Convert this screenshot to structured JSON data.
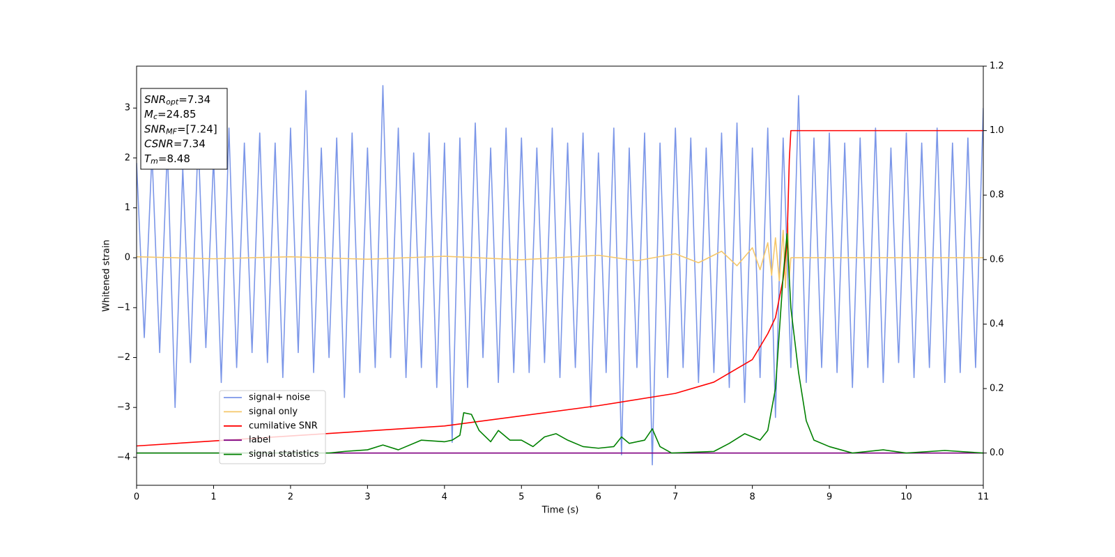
{
  "chart_data": {
    "type": "line",
    "xlabel": "Time (s)",
    "ylabel": "Whitened strain",
    "xlim": [
      0,
      11
    ],
    "ylim": [
      -4.56,
      3.84
    ],
    "y2lim": [
      -0.1,
      1.2
    ],
    "xticks": [
      0,
      1,
      2,
      3,
      4,
      5,
      6,
      7,
      8,
      9,
      10,
      11
    ],
    "yticks": [
      {
        "value": -4,
        "label": "−4"
      },
      {
        "value": -3,
        "label": "−3"
      },
      {
        "value": -2,
        "label": "−2"
      },
      {
        "value": -1,
        "label": "−1"
      },
      0,
      1,
      2,
      3
    ],
    "y2ticks": [
      {
        "value": 0,
        "label": "0.0"
      },
      {
        "value": 0.2,
        "label": "0.2"
      },
      {
        "value": 0.4,
        "label": "0.4"
      },
      {
        "value": 0.6,
        "label": "0.6"
      },
      {
        "value": 0.8,
        "label": "0.8"
      },
      {
        "value": 1,
        "label": "1.0"
      },
      {
        "value": 1.2,
        "label": "1.2"
      }
    ],
    "legend": "lower left",
    "annotations": [
      {
        "name": "SNR",
        "sub": "opt",
        "text": "=7.34"
      },
      {
        "name": "M",
        "sub": "c",
        "text": "=24.85"
      },
      {
        "name": "SNR",
        "sub": "MF",
        "text": "=[7.24]"
      },
      {
        "name": "CSNR",
        "text": "=7.34"
      },
      {
        "name": "T",
        "sub": "m",
        "text": "=8.48"
      }
    ],
    "series": [
      {
        "name": "signal+ noise",
        "color": "#7b96e8",
        "x": [
          0,
          0.1,
          0.2,
          0.3,
          0.4,
          0.5,
          0.6,
          0.7,
          0.8,
          0.9,
          1,
          1.1,
          1.2,
          1.3,
          1.4,
          1.5,
          1.6,
          1.7,
          1.8,
          1.9,
          2,
          2.1,
          2.2,
          2.3,
          2.4,
          2.5,
          2.6,
          2.7,
          2.8,
          2.9,
          3,
          3.1,
          3.2,
          3.3,
          3.4,
          3.5,
          3.6,
          3.7,
          3.8,
          3.9,
          4,
          4.1,
          4.2,
          4.3,
          4.4,
          4.5,
          4.6,
          4.7,
          4.8,
          4.9,
          5,
          5.1,
          5.2,
          5.3,
          5.4,
          5.5,
          5.6,
          5.7,
          5.8,
          5.9,
          6,
          6.1,
          6.2,
          6.3,
          6.4,
          6.5,
          6.6,
          6.7,
          6.8,
          6.9,
          7,
          7.1,
          7.2,
          7.3,
          7.4,
          7.5,
          7.6,
          7.7,
          7.8,
          7.9,
          8,
          8.1,
          8.2,
          8.3,
          8.4,
          8.5,
          8.6,
          8.7,
          8.8,
          8.9,
          9,
          9.1,
          9.2,
          9.3,
          9.4,
          9.5,
          9.6,
          9.7,
          9.8,
          9.9,
          10,
          10.1,
          10.2,
          10.3,
          10.4,
          10.5,
          10.6,
          10.7,
          10.8,
          10.9,
          11
        ],
        "values": [
          1.9,
          -1.6,
          2.1,
          -1.9,
          2.2,
          -3.0,
          1.8,
          -2.1,
          2.4,
          -1.8,
          2.0,
          -2.5,
          2.6,
          -2.2,
          2.3,
          -1.9,
          2.5,
          -2.1,
          2.3,
          -2.4,
          2.6,
          -1.9,
          3.35,
          -2.3,
          2.2,
          -2.0,
          2.4,
          -2.8,
          2.5,
          -2.3,
          2.2,
          -2.2,
          3.45,
          -2.0,
          2.6,
          -2.4,
          2.1,
          -2.2,
          2.5,
          -2.6,
          2.3,
          -3.7,
          2.4,
          -2.6,
          2.7,
          -2.0,
          2.2,
          -2.5,
          2.6,
          -2.3,
          2.4,
          -2.3,
          2.2,
          -2.1,
          2.6,
          -2.4,
          2.3,
          -2.2,
          2.5,
          -3.0,
          2.1,
          -2.3,
          2.6,
          -3.95,
          2.2,
          -2.2,
          2.5,
          -4.15,
          2.3,
          -2.4,
          2.6,
          -2.2,
          2.4,
          -2.5,
          2.2,
          -2.3,
          2.5,
          -2.6,
          2.7,
          -2.9,
          2.2,
          -2.4,
          2.6,
          -3.2,
          2.4,
          -2.2,
          3.25,
          -2.5,
          2.4,
          -2.2,
          2.5,
          -2.3,
          2.3,
          -2.6,
          2.4,
          -2.2,
          2.6,
          -2.5,
          2.2,
          -2.1,
          2.5,
          -2.4,
          2.3,
          -2.2,
          2.6,
          -2.5,
          2.3,
          -2.3,
          2.4,
          -2.2,
          3.0
        ]
      },
      {
        "name": "signal only",
        "color": "#f5c76a",
        "x": [
          0,
          1,
          2,
          3,
          4,
          5,
          6,
          6.5,
          7,
          7.3,
          7.6,
          7.8,
          8,
          8.1,
          8.2,
          8.25,
          8.3,
          8.35,
          8.4,
          8.43,
          8.46,
          8.48,
          8.5,
          11
        ],
        "values": [
          0.02,
          -0.02,
          0.02,
          -0.03,
          0.03,
          -0.04,
          0.05,
          -0.06,
          0.08,
          -0.1,
          0.13,
          -0.16,
          0.2,
          -0.24,
          0.3,
          -0.35,
          0.4,
          -0.46,
          0.55,
          -0.6,
          0.7,
          -0.4,
          0,
          0
        ]
      },
      {
        "name": "cumilative SNR",
        "color": "#ff0000",
        "axis": "y2",
        "x": [
          0,
          4,
          6,
          7,
          7.5,
          8,
          8.2,
          8.3,
          8.4,
          8.45,
          8.48,
          8.5,
          11
        ],
        "values": [
          0.022,
          0.084,
          0.147,
          0.185,
          0.22,
          0.29,
          0.37,
          0.42,
          0.54,
          0.65,
          0.91,
          1.0,
          1.0
        ]
      },
      {
        "name": "label",
        "color": "#800080",
        "axis": "y2",
        "x": [
          0,
          11
        ],
        "values": [
          0,
          0
        ]
      },
      {
        "name": "signal statistics",
        "color": "#008000",
        "axis": "y2",
        "x": [
          0,
          2.5,
          2.7,
          3,
          3.2,
          3.4,
          3.7,
          4,
          4.1,
          4.2,
          4.25,
          4.35,
          4.45,
          4.6,
          4.7,
          4.85,
          5,
          5.15,
          5.3,
          5.45,
          5.6,
          5.8,
          6,
          6.2,
          6.3,
          6.4,
          6.6,
          6.7,
          6.8,
          6.95,
          7.5,
          7.7,
          7.9,
          8.1,
          8.2,
          8.3,
          8.4,
          8.45,
          8.5,
          8.6,
          8.7,
          8.8,
          9,
          9.3,
          9.7,
          10,
          10.5,
          11
        ],
        "values": [
          0,
          0,
          0.005,
          0.01,
          0.025,
          0.01,
          0.04,
          0.035,
          0.04,
          0.055,
          0.125,
          0.12,
          0.07,
          0.035,
          0.07,
          0.04,
          0.04,
          0.02,
          0.05,
          0.06,
          0.04,
          0.02,
          0.015,
          0.02,
          0.05,
          0.03,
          0.04,
          0.075,
          0.02,
          0,
          0.005,
          0.03,
          0.06,
          0.04,
          0.07,
          0.2,
          0.55,
          0.68,
          0.45,
          0.25,
          0.1,
          0.04,
          0.02,
          0,
          0.01,
          0,
          0.008,
          0
        ]
      }
    ]
  }
}
